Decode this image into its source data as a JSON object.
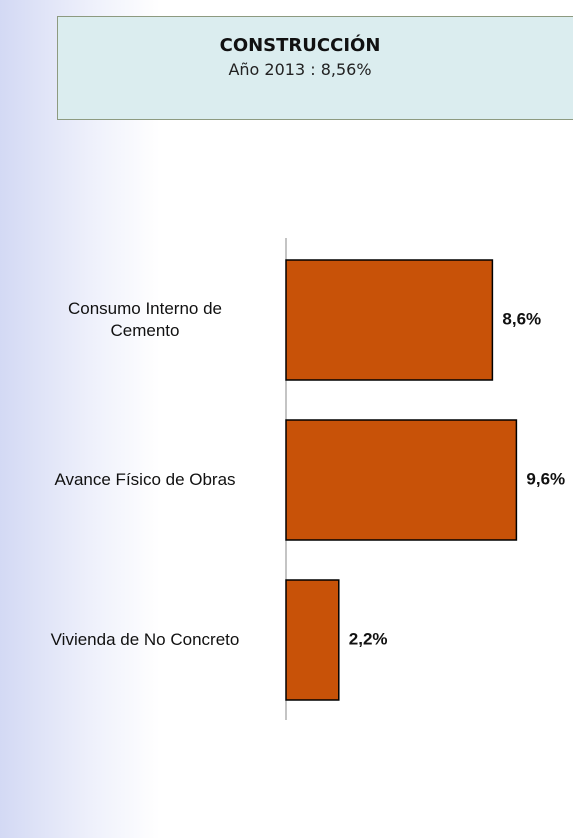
{
  "chart_data": {
    "type": "bar",
    "orientation": "horizontal",
    "title": "CONSTRUCCIÓN",
    "subtitle": "Año 2013 : 8,56%",
    "categories": [
      "Consumo Interno de Cemento",
      "Avance Físico de Obras",
      "Vivienda de No Concreto"
    ],
    "values": [
      8.6,
      9.6,
      2.2
    ],
    "value_labels": [
      "8,6%",
      "9,6%",
      "2,2%"
    ],
    "color": "#c85208"
  }
}
